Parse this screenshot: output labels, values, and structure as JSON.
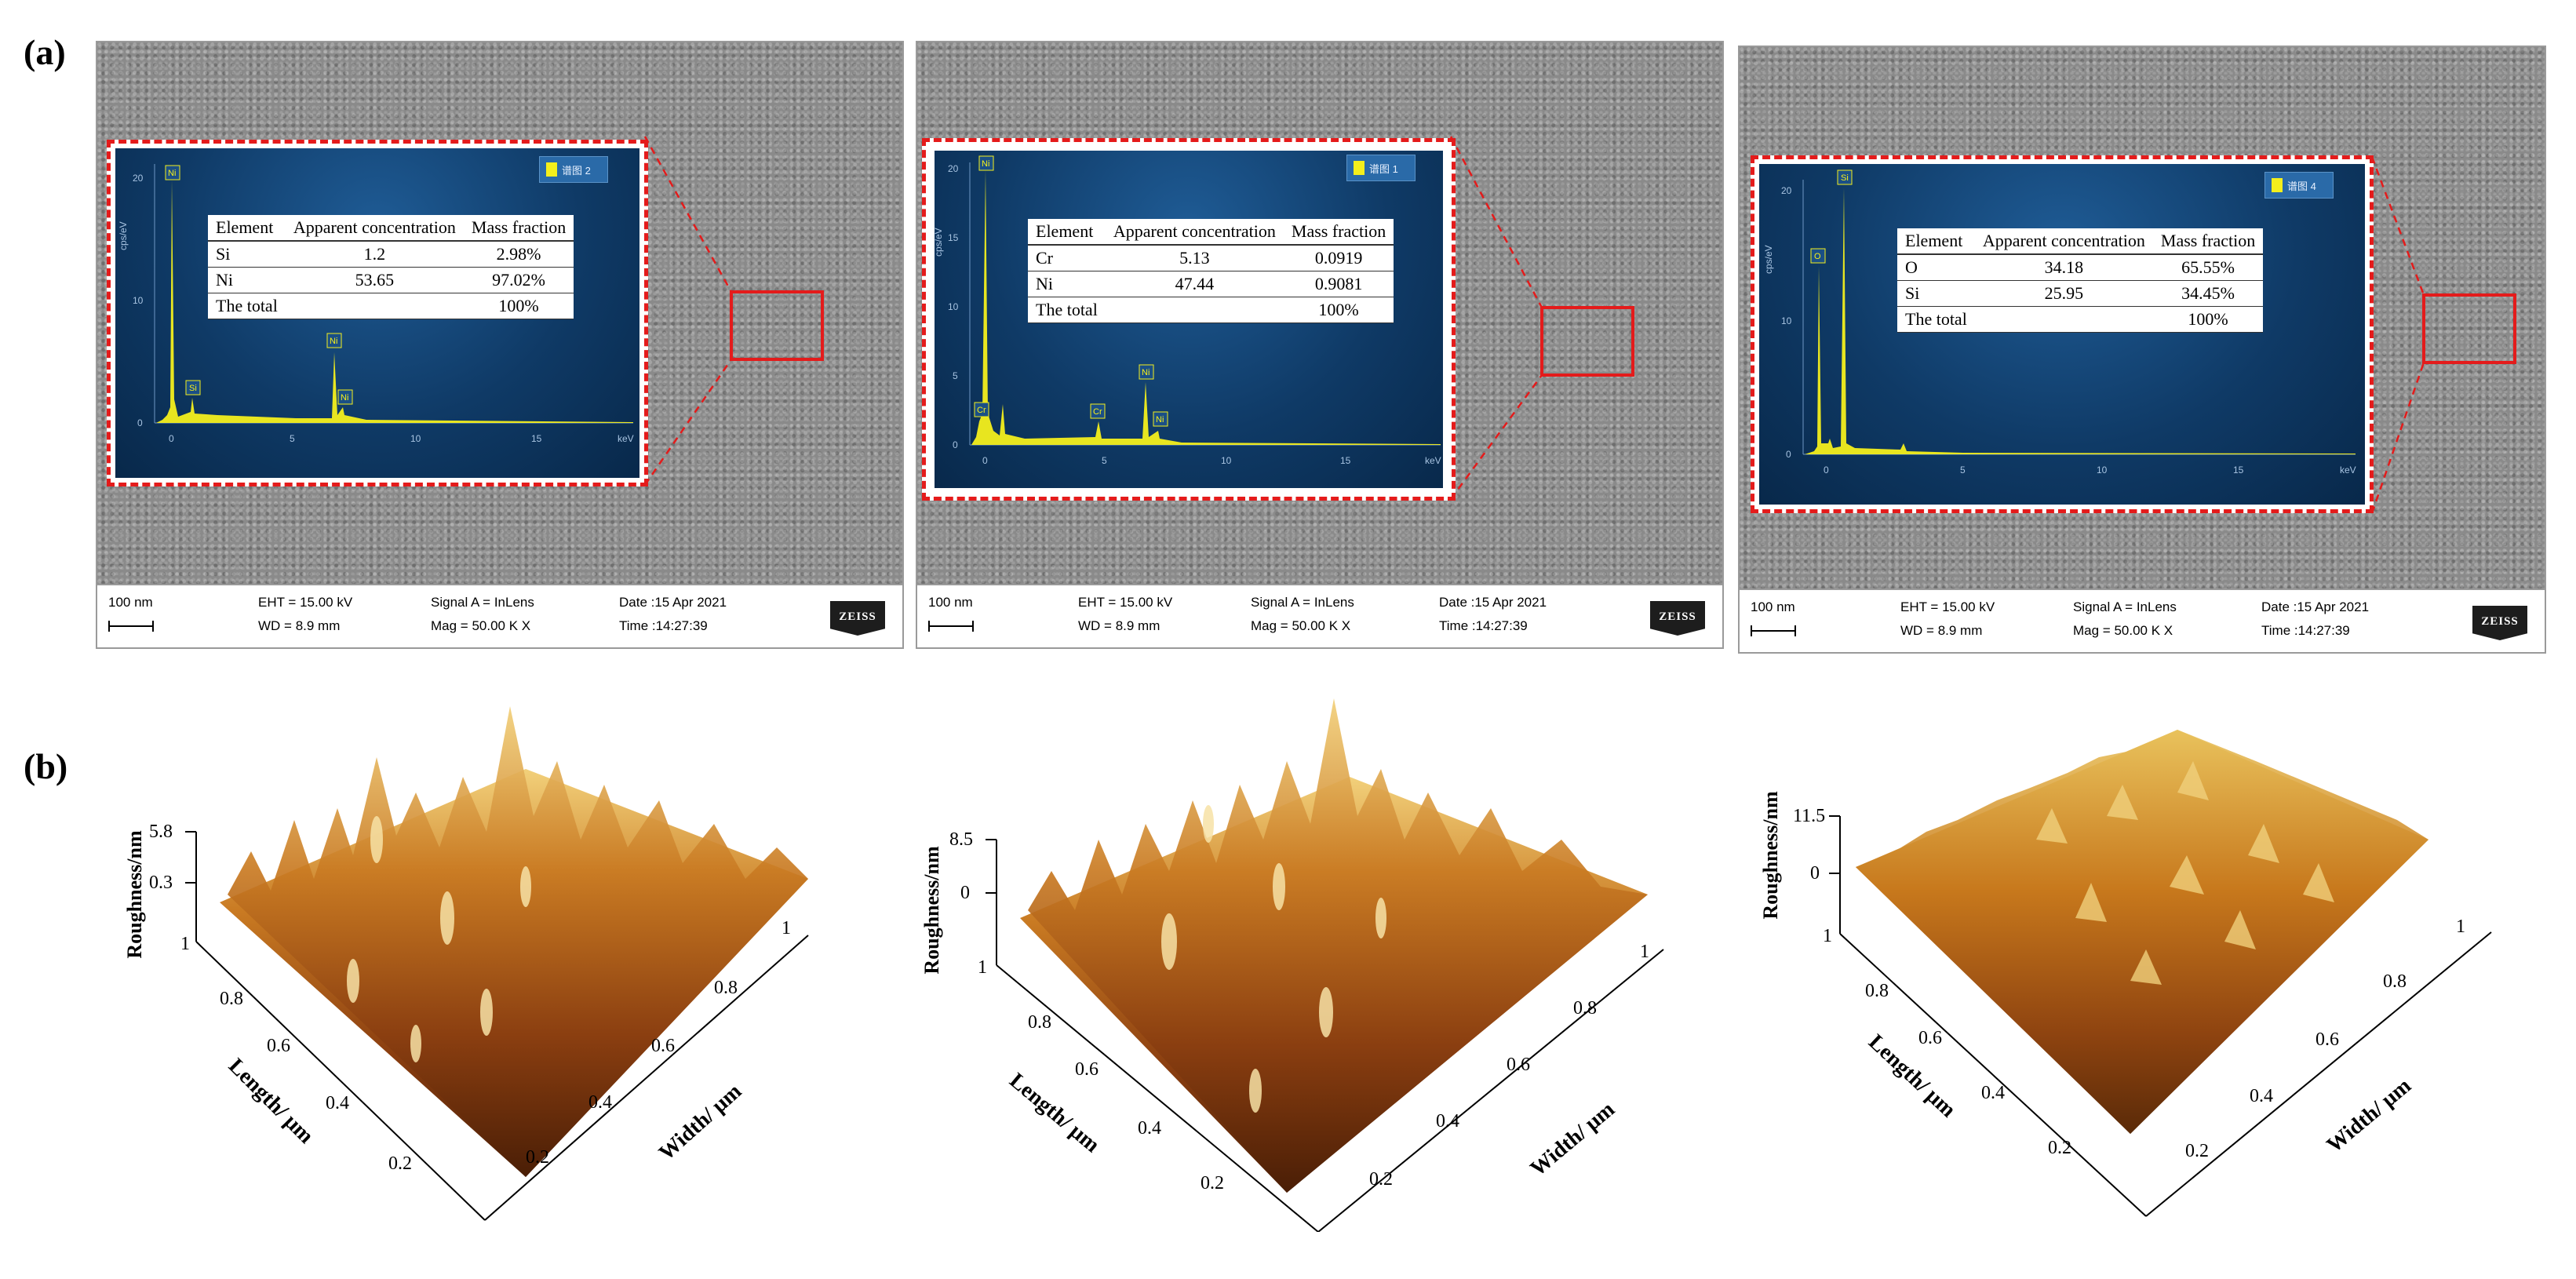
{
  "panel_a_label": "(a)",
  "panel_b_label": "(b)",
  "sem_panels": [
    {
      "legend": "谱图 2",
      "table": {
        "headers": [
          "Element",
          "Apparent concentration",
          "Mass fraction"
        ],
        "rows": [
          [
            "Si",
            "1.2",
            "2.98%"
          ],
          [
            "Ni",
            "53.65",
            "97.02%"
          ],
          [
            "The total",
            "",
            "100%"
          ]
        ]
      },
      "y_ticks": [
        "0",
        "10",
        "20"
      ],
      "y_unit": "cps/eV",
      "x_ticks": [
        "0",
        "5",
        "10",
        "15"
      ],
      "x_unit": "keV",
      "peaks": [
        "Ni",
        "Si",
        "Ni",
        "Ni"
      ]
    },
    {
      "legend": "谱图 1",
      "table": {
        "headers": [
          "Element",
          "Apparent concentration",
          "Mass fraction"
        ],
        "rows": [
          [
            "Cr",
            "5.13",
            "0.0919"
          ],
          [
            "Ni",
            "47.44",
            "0.9081"
          ],
          [
            "The total",
            "",
            "100%"
          ]
        ]
      },
      "y_ticks": [
        "0",
        "5",
        "10",
        "15",
        "20"
      ],
      "y_unit": "cps/eV",
      "x_ticks": [
        "0",
        "5",
        "10",
        "15"
      ],
      "x_unit": "keV",
      "peaks": [
        "Ni",
        "Cr",
        "Cr",
        "Ni",
        "Ni"
      ]
    },
    {
      "legend": "谱图 4",
      "table": {
        "headers": [
          "Element",
          "Apparent concentration",
          "Mass fraction"
        ],
        "rows": [
          [
            "O",
            "34.18",
            "65.55%"
          ],
          [
            "Si",
            "25.95",
            "34.45%"
          ],
          [
            "The total",
            "",
            "100%"
          ]
        ]
      },
      "y_ticks": [
        "0",
        "10",
        "20"
      ],
      "y_unit": "cps/eV",
      "x_ticks": [
        "0",
        "5",
        "10",
        "15"
      ],
      "x_unit": "keV",
      "peaks": [
        "O",
        "Si"
      ]
    }
  ],
  "sem_info": {
    "scale": "100 nm",
    "eht": "EHT = 15.00 kV",
    "wd": "WD =  8.9 mm",
    "signal": "Signal A = InLens",
    "mag": "Mag =   50.00 K X",
    "date": "Date :15 Apr 2021",
    "time": "Time :14:27:39",
    "logo": "ZEISS"
  },
  "afm_panels": [
    {
      "z_ticks": [
        "5.8",
        "0.3"
      ],
      "z_label": "Roughness/nm",
      "length_label": "Length/ μm",
      "width_label": "Width/ μm",
      "length_ticks": [
        "1",
        "0.8",
        "0.6",
        "0.4",
        "0.2"
      ],
      "width_ticks": [
        "0.2",
        "0.4",
        "0.6",
        "0.8",
        "1"
      ]
    },
    {
      "z_ticks": [
        "8.5",
        "0"
      ],
      "z_label": "Roughness/nm",
      "length_label": "Length/ μm",
      "width_label": "Width/ μm",
      "length_ticks": [
        "1",
        "0.8",
        "0.6",
        "0.4",
        "0.2"
      ],
      "width_ticks": [
        "0.2",
        "0.4",
        "0.6",
        "0.8",
        "1"
      ]
    },
    {
      "z_ticks": [
        "11.5",
        "0"
      ],
      "z_label": "Roughness/nm",
      "length_label": "Length/ μm",
      "width_label": "Width/ μm",
      "length_ticks": [
        "1",
        "0.8",
        "0.6",
        "0.4",
        "0.2"
      ],
      "width_ticks": [
        "0.2",
        "0.4",
        "0.6",
        "0.8",
        "1"
      ]
    }
  ],
  "colors": {
    "highlight_red": "#e41b1b",
    "spectrum_yellow": "#f4ef1c",
    "afm_dark": "#5a2a08",
    "afm_mid": "#b8651a",
    "afm_light": "#f2d07a"
  }
}
